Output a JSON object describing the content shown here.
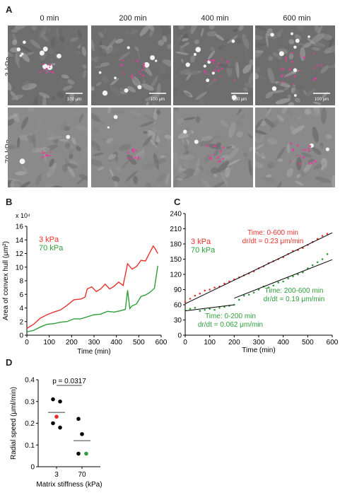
{
  "panels": {
    "A": "A",
    "B": "B",
    "C": "C",
    "D": "D"
  },
  "panel_a": {
    "times": [
      "0 min",
      "200 min",
      "400 min",
      "600 min"
    ],
    "rows": [
      "3 kPa",
      "70 kPa"
    ],
    "scale_bar_labels": [
      "100 μm",
      "100 μm",
      "100 μm",
      "100 μm"
    ],
    "colors": {
      "overlay": "#e0409a"
    }
  },
  "chart_data": [
    {
      "type": "line",
      "panel": "B",
      "xlabel": "Time (min)",
      "ylabel": "Area of convex hull (μm²)",
      "y_multiplier": "x 10⁴",
      "xlim": [
        0,
        600
      ],
      "ylim": [
        0,
        16
      ],
      "xticks": [
        0,
        100,
        200,
        300,
        400,
        500,
        600
      ],
      "yticks": [
        0,
        2,
        4,
        6,
        8,
        10,
        12,
        14,
        16
      ],
      "series": [
        {
          "name": "3 kPa",
          "color": "#e8312b",
          "x": [
            0,
            30,
            60,
            90,
            120,
            150,
            180,
            210,
            240,
            260,
            270,
            290,
            310,
            330,
            350,
            370,
            390,
            410,
            430,
            450,
            470,
            490,
            510,
            530,
            550,
            565,
            575,
            585
          ],
          "y": [
            1.0,
            1.6,
            2.5,
            3.0,
            3.4,
            3.7,
            4.4,
            5.2,
            5.3,
            5.6,
            6.8,
            7.1,
            6.4,
            6.8,
            7.5,
            6.8,
            7.2,
            7.8,
            7.3,
            10.5,
            9.7,
            10.1,
            11.0,
            10.9,
            12.2,
            13.1,
            12.6,
            12.0
          ]
        },
        {
          "name": "70 kPa",
          "color": "#2e9e3a",
          "x": [
            0,
            30,
            60,
            90,
            120,
            150,
            180,
            210,
            240,
            270,
            300,
            330,
            360,
            390,
            420,
            440,
            450,
            460,
            470,
            490,
            510,
            530,
            550,
            570,
            585
          ],
          "y": [
            0.5,
            0.7,
            1.2,
            1.6,
            1.7,
            1.9,
            2.0,
            2.4,
            2.4,
            2.7,
            3.0,
            3.1,
            3.5,
            3.4,
            3.6,
            3.8,
            6.6,
            3.9,
            4.3,
            4.6,
            5.7,
            5.9,
            6.3,
            6.9,
            10.2
          ]
        }
      ]
    },
    {
      "type": "scatter",
      "panel": "C",
      "xlabel": "Time (min)",
      "ylabel": "Radial distance (μm)",
      "xlim": [
        0,
        600
      ],
      "ylim": [
        0,
        240
      ],
      "xticks": [
        0,
        100,
        200,
        300,
        400,
        500,
        600
      ],
      "yticks": [
        0,
        30,
        60,
        90,
        120,
        150,
        180,
        210,
        240
      ],
      "series": [
        {
          "name": "3 kPa",
          "color": "#e8312b",
          "x": [
            0,
            20,
            40,
            60,
            80,
            100,
            120,
            140,
            160,
            180,
            200,
            220,
            240,
            260,
            280,
            300,
            320,
            340,
            360,
            380,
            400,
            420,
            440,
            460,
            480,
            500,
            520,
            540,
            560,
            580
          ],
          "y": [
            66,
            72,
            78,
            82,
            88,
            90,
            94,
            96,
            102,
            106,
            110,
            114,
            118,
            122,
            126,
            132,
            136,
            142,
            146,
            150,
            154,
            160,
            166,
            168,
            172,
            178,
            184,
            190,
            196,
            200
          ]
        },
        {
          "name": "70 kPa",
          "color": "#2e9e3a",
          "x": [
            0,
            20,
            40,
            60,
            80,
            100,
            120,
            140,
            160,
            180,
            200,
            220,
            240,
            260,
            280,
            300,
            320,
            340,
            360,
            380,
            400,
            420,
            440,
            460,
            480,
            500,
            520,
            540,
            560,
            580
          ],
          "y": [
            50,
            52,
            54,
            48,
            50,
            52,
            50,
            54,
            56,
            58,
            60,
            70,
            78,
            80,
            84,
            90,
            96,
            94,
            98,
            104,
            106,
            112,
            116,
            120,
            124,
            132,
            138,
            144,
            150,
            160
          ]
        }
      ],
      "fit_lines": [
        {
          "x": [
            0,
            600
          ],
          "y": [
            62,
            202
          ]
        },
        {
          "x": [
            0,
            200
          ],
          "y": [
            48,
            60
          ]
        },
        {
          "x": [
            200,
            600
          ],
          "y": [
            73,
            149
          ]
        }
      ],
      "annotations": {
        "red": [
          "Time: 0-600 min",
          "dr/dt = 0.23 μm/min"
        ],
        "green_mid": [
          "Time: 200-600 min",
          "dr/dt = 0.19 μm/min"
        ],
        "green_low": [
          "Time: 0-200 min",
          "dr/dt = 0.062 μm/min"
        ]
      }
    },
    {
      "type": "scatter",
      "panel": "D",
      "xlabel": "Matrix stiffness (kPa)",
      "ylabel": "Radial speed (μml/min)",
      "categories": [
        "3",
        "70"
      ],
      "ylim": [
        0,
        0.4
      ],
      "yticks": [
        0,
        0.1,
        0.2,
        0.3,
        0.4
      ],
      "significance": "p = 0.0317",
      "groups": [
        {
          "category": "3",
          "points": [
            0.31,
            0.3,
            0.2,
            0.18
          ],
          "highlight": 0.23,
          "mean": 0.25
        },
        {
          "category": "70",
          "points": [
            0.22,
            0.15,
            0.06
          ],
          "highlight": 0.06,
          "mean": 0.12
        }
      ],
      "colors": {
        "points": "#000000",
        "highlight_3": "#e8312b",
        "highlight_70": "#2e9e3a"
      }
    }
  ]
}
